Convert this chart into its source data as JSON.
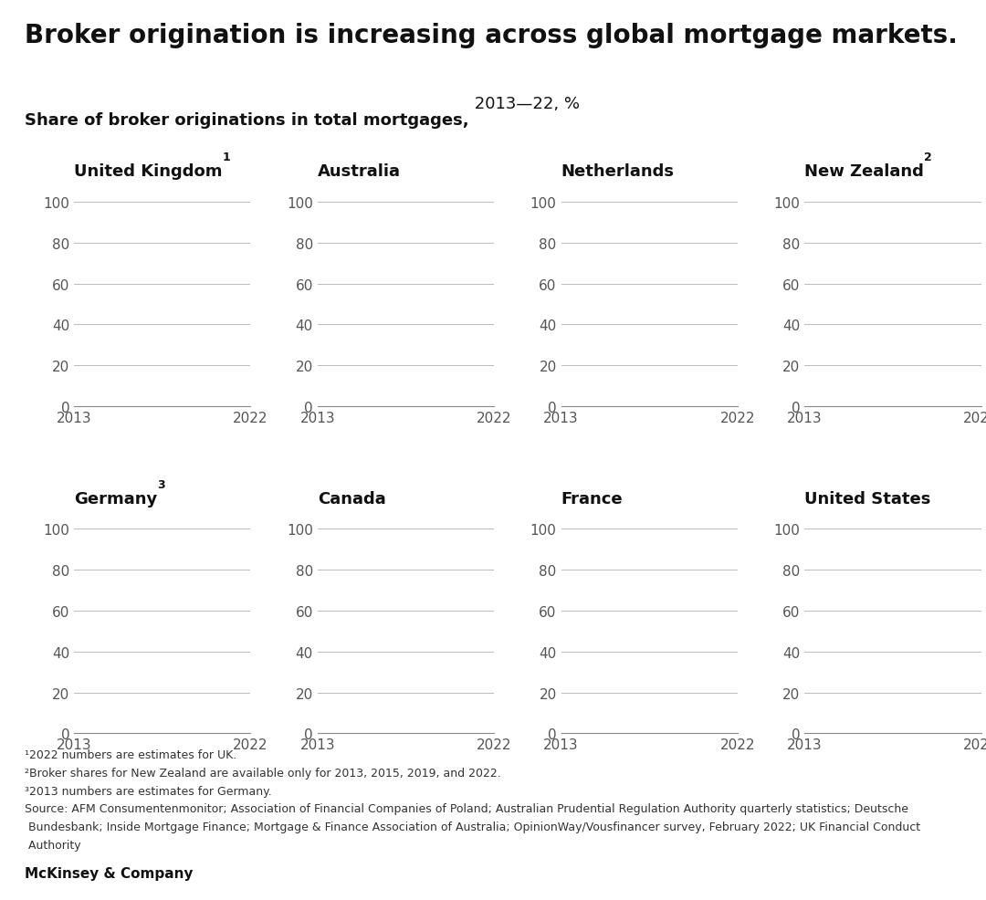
{
  "title": "Broker origination is increasing across global mortgage markets.",
  "subtitle_bold": "Share of broker originations in total mortgages,",
  "subtitle_normal": " 2013—22, %",
  "subplots": [
    {
      "title": "United Kingdom",
      "superscript": "1",
      "row": 0,
      "col": 0
    },
    {
      "title": "Australia",
      "superscript": "",
      "row": 0,
      "col": 1
    },
    {
      "title": "Netherlands",
      "superscript": "",
      "row": 0,
      "col": 2
    },
    {
      "title": "New Zealand",
      "superscript": "2",
      "row": 0,
      "col": 3
    },
    {
      "title": "Germany",
      "superscript": "3",
      "row": 1,
      "col": 0
    },
    {
      "title": "Canada",
      "superscript": "",
      "row": 1,
      "col": 1
    },
    {
      "title": "France",
      "superscript": "",
      "row": 1,
      "col": 2
    },
    {
      "title": "United States",
      "superscript": "",
      "row": 1,
      "col": 3
    }
  ],
  "x_ticks": [
    2013,
    2022
  ],
  "y_ticks": [
    0,
    20,
    40,
    60,
    80,
    100
  ],
  "xlim": [
    2013,
    2022
  ],
  "ylim": [
    0,
    100
  ],
  "footnote_lines": [
    "¹2022 numbers are estimates for UK.",
    "²Broker shares for New Zealand are available only for 2013, 2015, 2019, and 2022.",
    "³2013 numbers are estimates for Germany.",
    "Source: AFM Consumentenmonitor; Association of Financial Companies of Poland; Australian Prudential Regulation Authority quarterly statistics; Deutsche",
    " Bundesbank; Inside Mortgage Finance; Mortgage & Finance Association of Australia; OpinionWay/Vousfinancer survey, February 2022; UK Financial Conduct",
    " Authority"
  ],
  "footer": "McKinsey & Company",
  "grid_color": "#bbbbbb",
  "background_color": "#ffffff",
  "title_fontsize": 20,
  "subtitle_fontsize": 13,
  "subplot_title_fontsize": 13,
  "tick_fontsize": 11,
  "footnote_fontsize": 9,
  "footer_fontsize": 11
}
